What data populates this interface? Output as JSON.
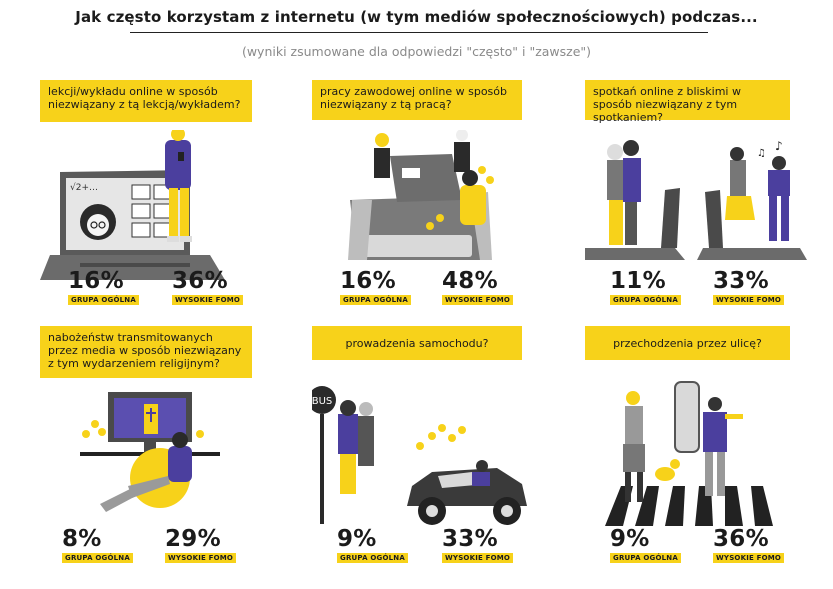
{
  "header": {
    "title": "Jak często korzystam z internetu (w tym mediów społecznościowych) podczas...",
    "subtitle": "(wyniki zsumowane dla odpowiedzi \"często\" i \"zawsze\")"
  },
  "colors": {
    "accent": "#f7d21a",
    "purple": "#4b3f9e",
    "text": "#1b1b1b",
    "muted": "#8a8a8a"
  },
  "labels": {
    "general": "GRUPA OGÓLNA",
    "fomo": "WYSOKIE FOMO"
  },
  "panels": [
    {
      "question": "lekcji/wykładu online w sposób niezwiązany z tą lekcją/wykładem?",
      "general": "16%",
      "fomo": "36%"
    },
    {
      "question": "pracy zawodowej online w sposób niezwiązany z tą pracą?",
      "general": "16%",
      "fomo": "48%"
    },
    {
      "question": "spotkań online z bliskimi w sposób niezwiązany z tym spotkaniem?",
      "general": "11%",
      "fomo": "33%"
    },
    {
      "question": "nabożeństw transmitowanych przez media w sposób niezwiązany z tym wydarzeniem religijnym?",
      "general": "8%",
      "fomo": "29%"
    },
    {
      "question": "prowadzenia samochodu?",
      "general": "9%",
      "fomo": "33%"
    },
    {
      "question": "przechodzenia przez ulicę?",
      "general": "9%",
      "fomo": "36%"
    }
  ],
  "illustrations": {
    "bus_sign": "BUS",
    "board_formula": "√2+…"
  }
}
